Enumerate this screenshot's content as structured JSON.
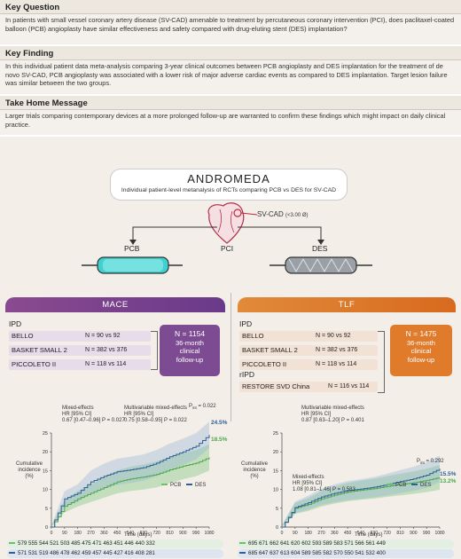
{
  "key_question": {
    "heading": "Key Question",
    "text": "In patients with small vessel coronary artery disease (SV-CAD) amenable to treatment by percutaneous coronary intervention (PCI), does paclitaxel-coated balloon (PCB) angioplasty have similar effectiveness and safety compared with drug-eluting stent (DES) implantation?"
  },
  "key_finding": {
    "heading": "Key Finding",
    "text": "In this individual patient data meta-analysis comparing 3-year clinical outcomes between PCB angioplasty and DES implantation for the treatment of de novo SV-CAD, PCB angioplasty was associated with a lower risk of major adverse cardiac events as compared to DES implantation. Target lesion failure was similar between the two groups."
  },
  "take_home": {
    "heading": "Take Home Message",
    "text": "Larger trials comparing contemporary devices at a more prolonged follow-up are warranted to confirm these findings which might impact on daily clinical practice."
  },
  "graphic": {
    "title": "ANDROMEDA",
    "subtitle": "Individual patient-level metanalysis of RCTs comparing PCB vs DES for SV-CAD",
    "svcad_label": "SV-CAD",
    "svcad_size": "(<3.00 Ø)",
    "pcb": "PCB",
    "pci": "PCI",
    "des": "DES",
    "colors": {
      "mace": "#7d4b91",
      "tlf": "#e07b2c",
      "pcb": "#6dbf6d",
      "des": "#2f5f98"
    }
  },
  "mace": {
    "header": "MACE",
    "ipd_label": "IPD",
    "studies": [
      {
        "name": "BELLO",
        "n": "N = 90 vs 92"
      },
      {
        "name": "BASKET SMALL 2",
        "n": "N = 382 vs 376"
      },
      {
        "name": "PICCOLETO II",
        "n": "N = 118 vs 114"
      }
    ],
    "total_n": "N = 1154",
    "followup_1": "36-month",
    "followup_2": "clinical",
    "followup_3": "follow-up",
    "anno1_l1": "Mixed-effects",
    "anno1_l2": "HR [95% CI]",
    "anno1_l3": "0.67 [0.47–0.96] P = 0.027",
    "anno2_l1": "Multivariable mixed-effects",
    "anno2_l2": "HR [95% CI]",
    "anno2_l3": "0.75 [0.58–0.95] P = 0.022",
    "p_int": "P",
    "p_int_sub": "int",
    "p_int_val": "= 0.022",
    "des_pct": "24.5%",
    "pcb_pct": "18.5%",
    "ylabel_1": "Cumulative",
    "ylabel_2": "incidence",
    "ylabel_3": "(%)",
    "xlabel": "Time (days)",
    "legend_pcb": "PCB",
    "legend_des": "DES",
    "atrisk_pcb": "579  555  544  521  503  485  475  471  463  451  446  440  332",
    "atrisk_des": "571  531  519  486  478  462  459  457  445  427  416  408  281"
  },
  "tlf": {
    "header": "TLF",
    "ipd_label": "IPD",
    "studies": [
      {
        "name": "BELLO",
        "n": "N = 90 vs 92"
      },
      {
        "name": "BASKET SMALL 2",
        "n": "N = 382 vs 376"
      },
      {
        "name": "PICCOLETO II",
        "n": "N = 118 vs 114"
      }
    ],
    "ripd_label": "rIPD",
    "ripd_study": {
      "name": "RESTORE SVD China",
      "n": "N = 116 vs 114"
    },
    "total_n": "N = 1475",
    "followup_1": "36-month",
    "followup_2": "clinical",
    "followup_3": "follow-up",
    "anno_top_l1": "Multivariable mixed-effects",
    "anno_top_l2": "HR [95% CI]",
    "anno_top_l3": "0.87 [0.63–1.20] P = 0.401",
    "anno_bottom_l1": "Mixed-effects",
    "anno_bottom_l2": "HR [95% CI]",
    "anno_bottom_l3": "1.08 [0.81–1.46] P = 0.583",
    "p_int": "P",
    "p_int_sub": "int",
    "p_int_val": "= 0.292",
    "des_pct": "15.5%",
    "pcb_pct": "13.2%",
    "ylabel_1": "Cumulative",
    "ylabel_2": "incidence",
    "ylabel_3": "(%)",
    "xlabel": "Time (days)",
    "legend_pcb": "PCB",
    "legend_des": "DES",
    "atrisk_pcb": "695  671  662  641  620  602  593  589  583  571  566  561  449",
    "atrisk_des": "685  647  637  613  604  589  585  582  570  550  541  532  400"
  },
  "chart_data": [
    {
      "type": "line",
      "title": "MACE",
      "xlabel": "Time (days)",
      "ylabel": "Cumulative incidence (%)",
      "x": [
        0,
        90,
        180,
        270,
        360,
        450,
        540,
        630,
        720,
        810,
        900,
        990,
        1080
      ],
      "ylim": [
        0,
        25
      ],
      "yticks": [
        0,
        5,
        10,
        15,
        20,
        25
      ],
      "series": [
        {
          "name": "PCB",
          "values": [
            0,
            5.5,
            7.5,
            9,
            10.5,
            12,
            12.8,
            13.3,
            14,
            15.2,
            16.2,
            17,
            18.5
          ]
        },
        {
          "name": "DES",
          "values": [
            0,
            7.5,
            9,
            12,
            13.5,
            14.7,
            15.2,
            15.8,
            17,
            18.7,
            20,
            21.5,
            24.5
          ]
        }
      ]
    },
    {
      "type": "line",
      "title": "TLF",
      "xlabel": "Time (days)",
      "ylabel": "Cumulative incidence (%)",
      "x": [
        0,
        90,
        180,
        270,
        360,
        450,
        540,
        630,
        720,
        810,
        900,
        990,
        1080
      ],
      "ylim": [
        0,
        25
      ],
      "yticks": [
        0,
        5,
        10,
        15,
        20,
        25
      ],
      "series": [
        {
          "name": "PCB",
          "values": [
            0,
            5,
            6,
            7.5,
            8.5,
            9.3,
            9.8,
            10.2,
            10.8,
            11.3,
            11.8,
            12.4,
            13.2
          ]
        },
        {
          "name": "DES",
          "values": [
            0,
            5.2,
            6.5,
            8,
            9,
            9.7,
            10.1,
            10.6,
            11.3,
            12.1,
            12.8,
            13.8,
            15.5
          ]
        }
      ]
    }
  ]
}
